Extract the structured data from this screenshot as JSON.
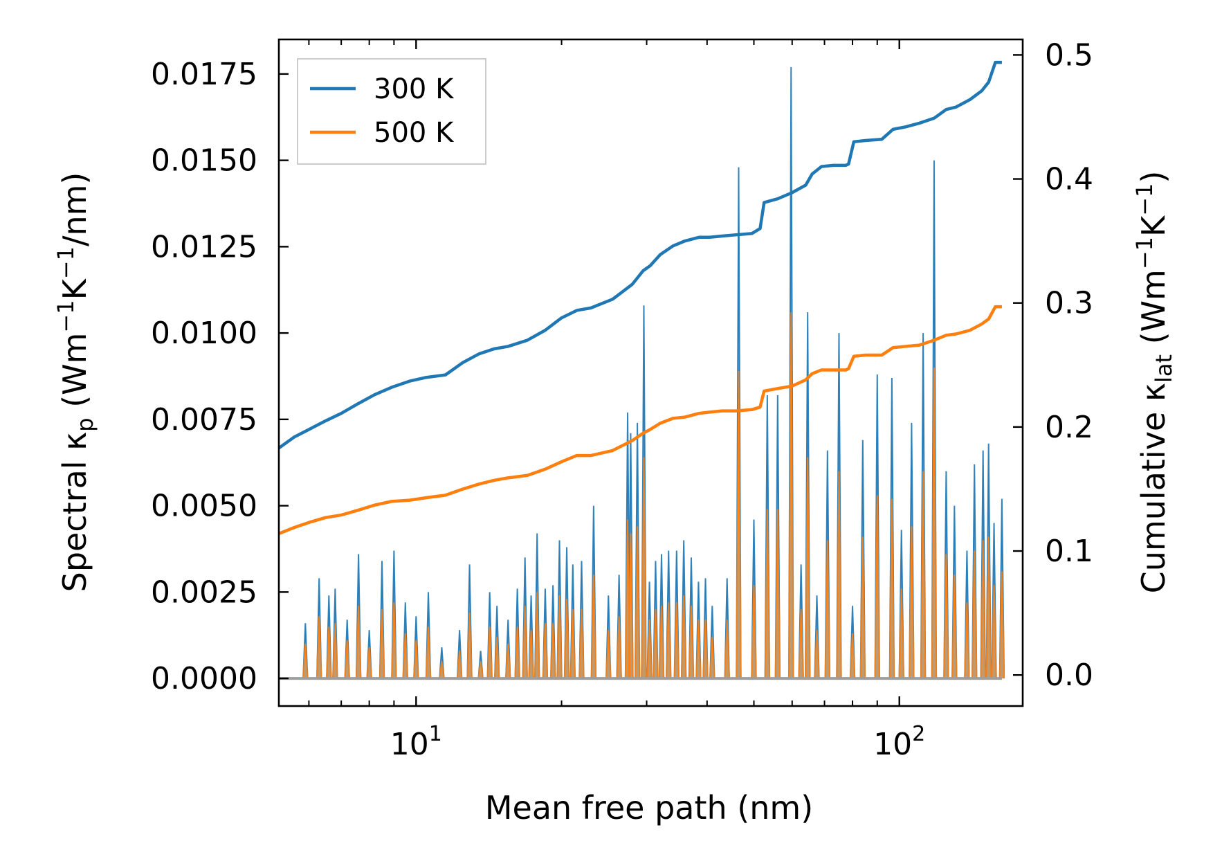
{
  "chart_data": {
    "type": "line",
    "xscale": "log",
    "xlabel": "Mean free path (nm)",
    "xlim": [
      5.2,
      180
    ],
    "x_ticks": [
      {
        "value": 10,
        "label": "10",
        "exp": "1"
      },
      {
        "value": 100,
        "label": "10",
        "exp": "2"
      }
    ],
    "ylabel_left": {
      "main": "Spectral κ",
      "sub": "p",
      "unit": " (Wm",
      "sup1": "−1",
      "unit2": "K",
      "sup2": "−1",
      "unit3": "/nm)"
    },
    "ylim_left": [
      -0.0008,
      0.0185
    ],
    "y_ticks_left": [
      "0.0000",
      "0.0025",
      "0.0050",
      "0.0075",
      "0.0100",
      "0.0125",
      "0.0150",
      "0.0175"
    ],
    "ylabel_right": {
      "main": "Cumulative κ",
      "sub": "lat",
      "unit": " (Wm",
      "sup1": "−1",
      "unit2": "K",
      "sup2": "−1",
      "unit3": ")"
    },
    "ylim_right": [
      -0.025,
      0.5125
    ],
    "y_ticks_right": [
      "0.0",
      "0.1",
      "0.2",
      "0.3",
      "0.4",
      "0.5"
    ],
    "legend": {
      "position": "upper-left",
      "entries": [
        "300 K",
        "500 K"
      ]
    },
    "colors": {
      "300 K": "#1f77b4",
      "500 K": "#ff7f0e",
      "fill_300": "#5b9ac6",
      "fill_500": "#c49a6c"
    },
    "spectral": {
      "300 K": {
        "x": [
          5.9,
          6.3,
          6.6,
          6.8,
          7.2,
          7.6,
          8.0,
          8.5,
          9.0,
          9.5,
          10.0,
          10.6,
          11.3,
          12.3,
          12.9,
          13.6,
          14.2,
          14.7,
          15.5,
          16.2,
          16.8,
          17.3,
          17.8,
          18.5,
          19.2,
          19.8,
          20.5,
          21.1,
          22.0,
          23.3,
          25.0,
          26.3,
          27.4,
          27.8,
          28.7,
          29.6,
          30.4,
          31.3,
          32.2,
          33.3,
          34.6,
          35.8,
          37.1,
          38.4,
          39.7,
          41.0,
          44.0,
          46.5,
          50.0,
          53.3,
          56.0,
          59.7,
          62.6,
          64.6,
          67.5,
          71.0,
          75.0,
          80.0,
          84.0,
          90.0,
          96.5,
          101.0,
          106.0,
          112.0,
          118.0,
          125.0,
          130.0,
          138.0,
          143.0,
          149.0,
          153.0,
          157.0,
          163.0
        ],
        "y": [
          0.0016,
          0.0029,
          0.0024,
          0.0026,
          0.0017,
          0.0036,
          0.0014,
          0.0034,
          0.0037,
          0.0022,
          0.0018,
          0.0025,
          0.0009,
          0.0014,
          0.0033,
          0.0008,
          0.0025,
          0.0021,
          0.0017,
          0.0026,
          0.0035,
          0.0024,
          0.0042,
          0.0026,
          0.0027,
          0.004,
          0.0038,
          0.0033,
          0.0034,
          0.005,
          0.0024,
          0.003,
          0.0077,
          0.0071,
          0.0074,
          0.0108,
          0.0028,
          0.0034,
          0.0036,
          0.0037,
          0.0037,
          0.004,
          0.0035,
          0.0028,
          0.0029,
          0.0021,
          0.0029,
          0.0148,
          0.0046,
          0.0082,
          0.0082,
          0.0177,
          0.0033,
          0.0106,
          0.0024,
          0.0066,
          0.01,
          0.0021,
          0.0069,
          0.0088,
          0.0087,
          0.0043,
          0.0074,
          0.01,
          0.015,
          0.006,
          0.005,
          0.0037,
          0.0062,
          0.0066,
          0.0068,
          0.0045,
          0.0052
        ]
      },
      "500 K": {
        "x": [
          5.9,
          6.3,
          6.6,
          6.8,
          7.2,
          7.6,
          8.0,
          8.5,
          9.0,
          9.5,
          10.0,
          10.6,
          11.3,
          12.3,
          12.9,
          13.6,
          14.2,
          14.7,
          15.5,
          16.2,
          16.8,
          17.3,
          17.8,
          18.5,
          19.2,
          19.8,
          20.5,
          21.1,
          22.0,
          23.3,
          25.0,
          26.3,
          27.4,
          27.8,
          28.7,
          29.6,
          30.4,
          31.3,
          32.2,
          33.3,
          34.6,
          35.8,
          37.1,
          38.4,
          39.7,
          41.0,
          44.0,
          46.5,
          50.0,
          53.3,
          56.0,
          59.7,
          62.6,
          64.6,
          67.5,
          71.0,
          75.0,
          80.0,
          84.0,
          90.0,
          96.5,
          101.0,
          106.0,
          112.0,
          118.0,
          125.0,
          130.0,
          138.0,
          143.0,
          149.0,
          153.0,
          157.0,
          163.0
        ],
        "y": [
          0.001,
          0.0018,
          0.0015,
          0.0016,
          0.0011,
          0.0021,
          0.0009,
          0.002,
          0.0022,
          0.0013,
          0.0011,
          0.0015,
          0.0005,
          0.0008,
          0.0019,
          0.0005,
          0.0015,
          0.0012,
          0.001,
          0.0015,
          0.0021,
          0.0014,
          0.0025,
          0.0016,
          0.0016,
          0.0024,
          0.0023,
          0.002,
          0.002,
          0.003,
          0.0014,
          0.0018,
          0.0046,
          0.0042,
          0.0044,
          0.0064,
          0.0017,
          0.002,
          0.0021,
          0.0022,
          0.0022,
          0.0024,
          0.0021,
          0.0017,
          0.0017,
          0.0012,
          0.0017,
          0.0089,
          0.0027,
          0.0049,
          0.0049,
          0.0106,
          0.002,
          0.0064,
          0.0014,
          0.004,
          0.006,
          0.0013,
          0.0041,
          0.0053,
          0.0052,
          0.0026,
          0.0044,
          0.006,
          0.009,
          0.0036,
          0.003,
          0.0022,
          0.0037,
          0.004,
          0.0041,
          0.0027,
          0.0031
        ]
      }
    },
    "cumulative": {
      "300 K": {
        "x": [
          5.2,
          5.6,
          6.0,
          6.5,
          7.0,
          7.6,
          8.2,
          8.9,
          9.7,
          10.5,
          11.5,
          12.5,
          13.5,
          14.5,
          15.5,
          17.0,
          18.5,
          20.0,
          21.5,
          23.0,
          25.5,
          28.0,
          29.5,
          30.5,
          32.0,
          34.0,
          36.0,
          38.5,
          40.5,
          43.0,
          46.0,
          49.5,
          51.5,
          52.5,
          56.0,
          60.0,
          64.0,
          66.0,
          69.0,
          73.0,
          77.5,
          78.5,
          80.5,
          85.0,
          92.0,
          97.0,
          103.0,
          110.0,
          118.0,
          125.0,
          131.0,
          140.0,
          148.0,
          153.0,
          158.0,
          163.0
        ],
        "y": [
          0.183,
          0.192,
          0.198,
          0.205,
          0.211,
          0.219,
          0.226,
          0.232,
          0.237,
          0.24,
          0.242,
          0.252,
          0.259,
          0.263,
          0.265,
          0.27,
          0.278,
          0.288,
          0.294,
          0.296,
          0.303,
          0.315,
          0.326,
          0.33,
          0.339,
          0.346,
          0.35,
          0.353,
          0.353,
          0.354,
          0.355,
          0.356,
          0.36,
          0.381,
          0.384,
          0.389,
          0.395,
          0.404,
          0.41,
          0.411,
          0.411,
          0.412,
          0.43,
          0.431,
          0.432,
          0.44,
          0.442,
          0.445,
          0.449,
          0.456,
          0.458,
          0.464,
          0.471,
          0.478,
          0.494,
          0.494
        ]
      },
      "500 K": {
        "x": [
          5.2,
          5.6,
          6.0,
          6.5,
          7.0,
          7.6,
          8.2,
          8.9,
          9.7,
          10.5,
          11.5,
          12.5,
          13.5,
          14.5,
          15.5,
          17.0,
          18.5,
          20.0,
          21.5,
          23.0,
          25.5,
          28.0,
          29.5,
          30.5,
          32.0,
          34.0,
          36.0,
          38.5,
          40.5,
          43.0,
          46.0,
          49.5,
          51.5,
          52.5,
          56.0,
          60.0,
          64.0,
          66.0,
          69.0,
          73.0,
          77.5,
          78.5,
          80.5,
          85.0,
          92.0,
          97.0,
          103.0,
          110.0,
          118.0,
          125.0,
          131.0,
          140.0,
          148.0,
          153.0,
          158.0,
          163.0
        ],
        "y": [
          0.114,
          0.119,
          0.123,
          0.127,
          0.129,
          0.133,
          0.137,
          0.14,
          0.141,
          0.143,
          0.145,
          0.15,
          0.154,
          0.157,
          0.159,
          0.161,
          0.166,
          0.172,
          0.177,
          0.177,
          0.181,
          0.189,
          0.195,
          0.198,
          0.203,
          0.207,
          0.208,
          0.211,
          0.212,
          0.213,
          0.213,
          0.214,
          0.216,
          0.229,
          0.231,
          0.233,
          0.238,
          0.243,
          0.246,
          0.246,
          0.246,
          0.247,
          0.257,
          0.258,
          0.258,
          0.264,
          0.265,
          0.266,
          0.27,
          0.274,
          0.275,
          0.278,
          0.283,
          0.287,
          0.297,
          0.297
        ]
      }
    }
  }
}
